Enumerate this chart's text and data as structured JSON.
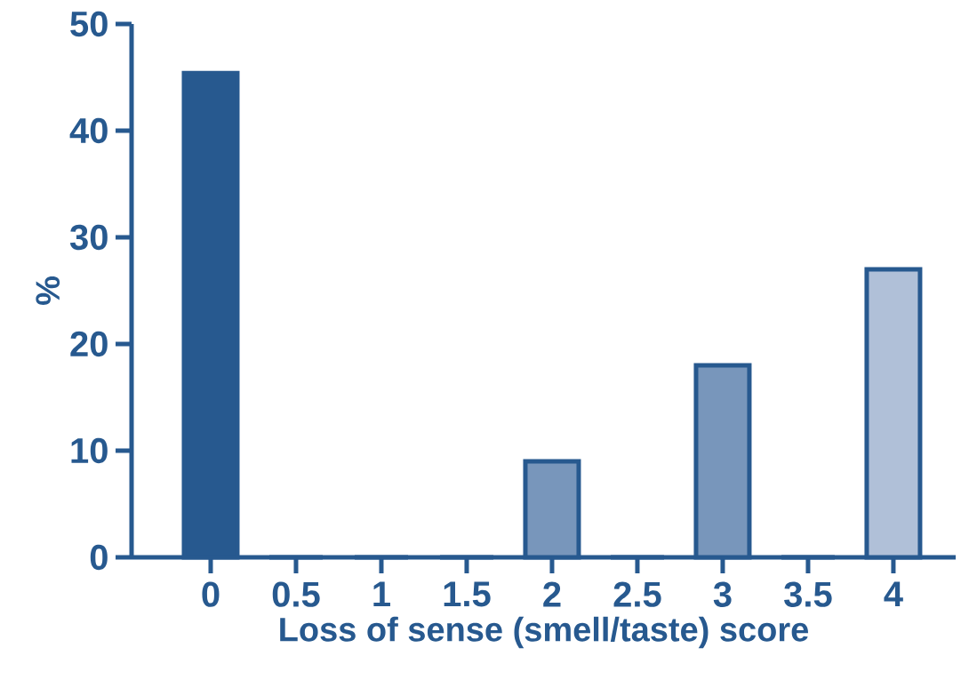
{
  "chart_data": {
    "type": "bar",
    "xlabel": "Loss of sense (smell/taste) score",
    "ylabel": "%",
    "categories": [
      "0",
      "0.5",
      "1",
      "1.5",
      "2",
      "2.5",
      "3",
      "3.5",
      "4"
    ],
    "values": [
      45.4,
      0,
      0,
      0,
      9,
      0,
      18,
      0,
      27
    ],
    "colors": [
      "#27598f",
      "#27598f",
      "#27598f",
      "#27598f",
      "#7896bb",
      "#27598f",
      "#7896bb",
      "#27598f",
      "#b0c0d8"
    ],
    "ylim": [
      0,
      50
    ],
    "yticks": [
      0,
      10,
      20,
      30,
      40,
      50
    ]
  }
}
